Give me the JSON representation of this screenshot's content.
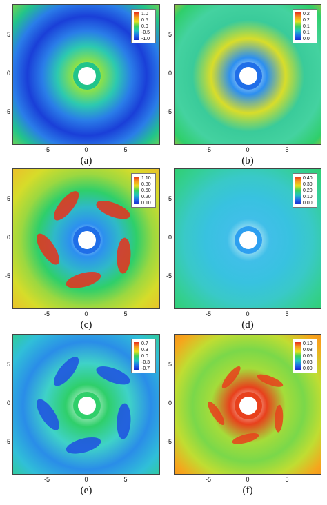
{
  "figure": {
    "panels": [
      {
        "caption": "(a)",
        "legend": [
          "1.0",
          "0.5",
          "0.0",
          "-0.5",
          "-1.0"
        ],
        "rings": [
          "#e8401c",
          "#f59a1e",
          "#d9e21e",
          "#7ad54a",
          "#22c48a",
          "#2a7de8",
          "#1a3fd8",
          "#2a7de8",
          "#2cc9b0",
          "#8be04a",
          "#ffffff"
        ],
        "corner": "#e8401c",
        "hub_edge": "#22c48a"
      },
      {
        "caption": "(b)",
        "legend": [
          "0.2",
          "0.2",
          "0.1",
          "0.1",
          "0.0"
        ],
        "rings": [
          "#2fcf6a",
          "#f08a1e",
          "#f6b51c",
          "#2fcf6a",
          "#44d2a0",
          "#3acb9a",
          "#d8dd2a",
          "#2d8ff0",
          "#ffffff"
        ],
        "corner": "#2fcf6a",
        "hub_edge": "#1f6ee8"
      },
      {
        "caption": "(c)",
        "legend": [
          "1.10",
          "0.80",
          "0.50",
          "0.20",
          "0.10"
        ],
        "rings": [
          "#f6b51c",
          "#f2a51c",
          "#f6b51c",
          "#e8c42a",
          "#d6dc2a",
          "#9cd840",
          "#2fcf6a",
          "#2fb9c8",
          "#2d8ff0",
          "#ffffff"
        ],
        "corner": "#f6b51c",
        "hub_edge": "#1f6ee8"
      },
      {
        "caption": "(d)",
        "legend": [
          "0.40",
          "0.30",
          "0.20",
          "0.10",
          "0.00"
        ],
        "rings": [
          "#2fcf6a",
          "#6ad85a",
          "#2fcf6a",
          "#34cf94",
          "#39c9c8",
          "#38c2e0",
          "#40bfe8",
          "#ffffff"
        ],
        "corner": "#3fcf6a",
        "hub_edge": "#2d9ff0"
      },
      {
        "caption": "(e)",
        "legend": [
          "0.7",
          "0.3",
          "0.0",
          "-0.3",
          "-0.7"
        ],
        "rings": [
          "#2fcf6a",
          "#2fcf6a",
          "#2fcf8a",
          "#30bfd8",
          "#2a8de8",
          "#3fd2c8",
          "#2fcf6a",
          "#ffffff"
        ],
        "corner": "#2fcf6a",
        "hub_edge": "#2fcf6a"
      },
      {
        "caption": "(f)",
        "legend": [
          "0.10",
          "0.08",
          "0.05",
          "0.03",
          "0.00"
        ],
        "rings": [
          "#8ad84a",
          "#f6b51c",
          "#f08a1e",
          "#f6a51c",
          "#c0dd32",
          "#7ad84a",
          "#a5dc3a",
          "#e8401c",
          "#ffffff"
        ],
        "corner": "#8ad84a",
        "hub_edge": "#e8401c"
      }
    ],
    "yticks": [
      "5",
      "0",
      "-5"
    ],
    "xticks": [
      "-5",
      "0",
      "5"
    ]
  }
}
